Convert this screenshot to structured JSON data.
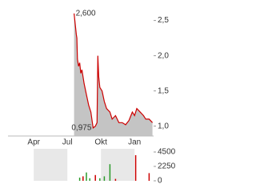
{
  "chart_data": [
    {
      "type": "area",
      "color": "#cc0000",
      "fill": "#c4c4c4",
      "x": [
        3.6,
        3.7,
        3.8,
        3.85,
        3.9,
        4.0,
        4.1,
        4.2,
        4.3,
        4.5,
        4.7,
        4.9,
        5.1,
        5.3,
        5.5,
        5.65,
        5.72,
        5.8,
        5.9,
        6.1,
        6.3,
        6.5,
        6.8,
        7.0,
        7.3,
        7.6,
        7.9,
        8.2,
        8.5,
        8.8,
        9.0,
        9.2,
        9.5,
        9.8,
        10.0,
        10.3,
        10.6
      ],
      "values": [
        2.6,
        2.45,
        2.3,
        2.25,
        1.95,
        1.85,
        1.9,
        1.75,
        1.8,
        1.6,
        1.45,
        1.3,
        1.2,
        0.975,
        1.0,
        1.05,
        2.0,
        1.7,
        1.55,
        1.5,
        1.35,
        1.25,
        1.2,
        1.1,
        1.15,
        1.05,
        1.05,
        1.02,
        1.08,
        1.2,
        1.15,
        1.25,
        1.2,
        1.15,
        1.1,
        1.1,
        1.05
      ],
      "value_labels": [
        "2,600",
        null,
        null,
        null,
        null,
        null,
        null,
        null,
        null,
        null,
        null,
        null,
        null,
        "0,975",
        null,
        null,
        null,
        null,
        null,
        null,
        null,
        null,
        null,
        null,
        null,
        null,
        null,
        null,
        null,
        null,
        null,
        null,
        null,
        null,
        null,
        null,
        null
      ],
      "xlim": [
        -2.3,
        10.7
      ],
      "xticks": [
        {
          "value": 0,
          "label": "Apr"
        },
        {
          "value": 3,
          "label": "Jul"
        },
        {
          "value": 6,
          "label": "Okt"
        },
        {
          "value": 9,
          "label": "Jan"
        }
      ],
      "ylim": [
        0.86,
        2.7
      ],
      "yticks": [
        {
          "value": 1.0,
          "label": "1,0"
        },
        {
          "value": 1.5,
          "label": "1,5"
        },
        {
          "value": 2.0,
          "label": "2,0"
        },
        {
          "value": 2.5,
          "label": "2,5"
        }
      ]
    },
    {
      "type": "bar",
      "x": [
        4.1,
        4.4,
        4.7,
        5.0,
        5.5,
        5.9,
        6.3,
        6.8,
        7.3,
        9.1,
        10.3
      ],
      "values": [
        500,
        700,
        1300,
        400,
        900,
        400,
        700,
        2600,
        300,
        4000,
        1200
      ],
      "colors": [
        "#2a9a2a",
        "#cc0000",
        "#2a9a2a",
        "#2a9a2a",
        "#cc0000",
        "#2a9a2a",
        "#2a9a2a",
        "#2a9a2a",
        "#cc0000",
        "#cc0000",
        "#cc0000"
      ],
      "xlim": [
        -2.3,
        10.7
      ],
      "shade": "#e8e8e8",
      "ylim": [
        0,
        5000
      ],
      "yticks": [
        0,
        2250,
        4500
      ]
    }
  ]
}
